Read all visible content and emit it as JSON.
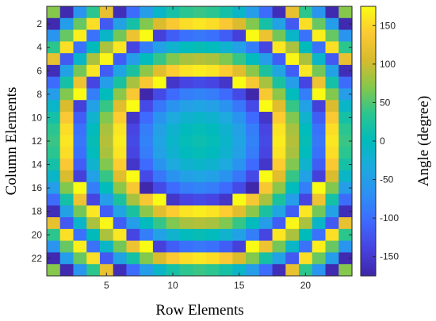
{
  "chart_data": {
    "type": "heatmap",
    "title": "",
    "xlabel": "Row Elements",
    "ylabel": "Column Elements",
    "colorbar_label": "Angle (degree)",
    "xlim": [
      1,
      23
    ],
    "ylim": [
      1,
      23
    ],
    "y_direction": "reversed",
    "x_ticks": [
      5,
      10,
      15,
      20
    ],
    "y_ticks": [
      2,
      4,
      6,
      8,
      10,
      12,
      14,
      16,
      18,
      20,
      22
    ],
    "colorbar_range": [
      -175,
      175
    ],
    "colorbar_ticks": [
      150,
      100,
      50,
      0,
      -50,
      -100,
      -150
    ],
    "grid": false,
    "colormap": [
      "#3e26a8",
      "#4742e0",
      "#3e69fe",
      "#2d8ff4",
      "#1ea9df",
      "#01bbbc",
      "#2ac58f",
      "#85c84c",
      "#d7bb2d",
      "#fcc933",
      "#f9fb15"
    ],
    "phase_model": {
      "description": "cell value = wrap((phi0 - k*((x-12)^2+(y-12)^2)) to [-180,180))",
      "center": [
        12,
        12
      ],
      "phi0": 10,
      "k": 5.7
    }
  }
}
